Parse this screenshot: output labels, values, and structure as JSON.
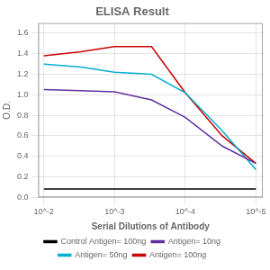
{
  "chart_data": {
    "type": "line",
    "title": "ELISA Result",
    "y_label": "O.D.",
    "x_label": "Serial Dilutions of Antibody",
    "x": [
      0.01,
      0.003,
      0.001,
      0.0003,
      0.0001,
      3e-05,
      1e-05
    ],
    "series": [
      {
        "name": "Control Antigen= 100ng",
        "color": "#000000",
        "values": [
          0.08,
          0.08,
          0.08,
          0.08,
          0.08,
          0.08,
          0.08
        ]
      },
      {
        "name": "Antigen= 10ng",
        "color": "#6030A0",
        "values": [
          1.05,
          1.04,
          1.03,
          0.95,
          0.78,
          0.5,
          0.33
        ]
      },
      {
        "name": "Antigen= 50ng",
        "color": "#00B0D0",
        "values": [
          1.3,
          1.27,
          1.22,
          1.2,
          1.02,
          0.65,
          0.27
        ]
      },
      {
        "name": "Antigen= 100ng",
        "color": "#CC0000",
        "values": [
          1.38,
          1.42,
          1.47,
          1.47,
          1.02,
          0.6,
          0.33
        ]
      }
    ],
    "log": "x",
    "xlim": [
      0.012,
      8e-06
    ],
    "xticks": [
      {
        "value": 0.01,
        "label": "10^-2"
      },
      {
        "value": 0.001,
        "label": "10^-3"
      },
      {
        "value": 0.0001,
        "label": "10^-4"
      },
      {
        "value": 1e-05,
        "label": "10^-5"
      }
    ],
    "ylim": [
      0,
      1.7
    ],
    "yticks": [
      {
        "value": 0,
        "label": "0.0"
      },
      0.2,
      0.4,
      0.6,
      0.8,
      {
        "value": 1.0,
        "label": "1.0"
      },
      1.2,
      1.4,
      1.6
    ],
    "grid": true,
    "legend": "bottom"
  }
}
